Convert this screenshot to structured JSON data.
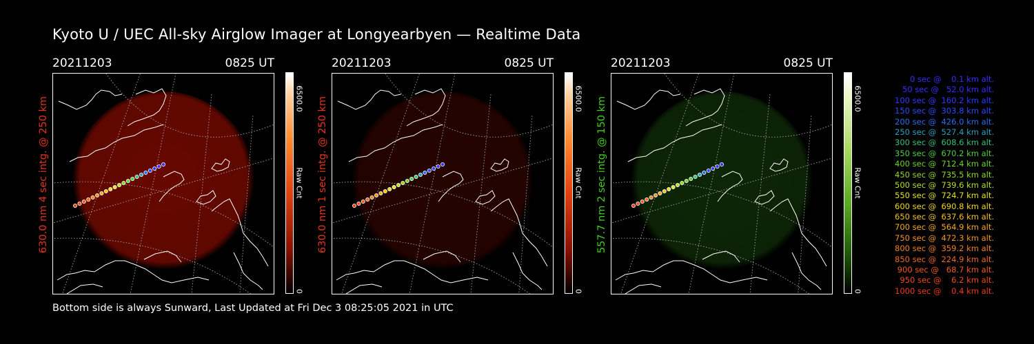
{
  "title": "Kyoto U / UEC All-sky Airglow Imager at Longyearbyen — Realtime Data",
  "footer": "Bottom side is always Sunward, Last Updated at Fri Dec  3 08:25:05 2021 in UTC",
  "panels": [
    {
      "date": "20211203",
      "time": "0825 UT",
      "side_label": "630.0 nm 4 sec intg. @ 250 km",
      "side_color": "#e8331c",
      "cbar_max": "6500.0",
      "cbar_unit": "Raw Cnt",
      "cbar_min": "0",
      "tint": "#7a0a00",
      "glow": 0.85
    },
    {
      "date": "20211203",
      "time": "0825 UT",
      "side_label": "630.0 nm 1 sec intg. @ 250 km",
      "side_color": "#e8331c",
      "cbar_max": "6500.0",
      "cbar_unit": "Raw Cnt",
      "cbar_min": "0",
      "tint": "#2a0400",
      "glow": 0.9
    },
    {
      "date": "20211203",
      "time": "0825 UT",
      "side_label": "557.7 nm 2 sec intg. @ 150 km",
      "side_color": "#3fd11b",
      "cbar_max": "6500.0",
      "cbar_unit": "Raw Cnt",
      "cbar_min": "0",
      "tint": "#0f2a08",
      "glow": 0.9
    }
  ],
  "legend": [
    {
      "text": "   0 sec @    0.1 km alt.",
      "color": "#3a2cff"
    },
    {
      "text": "  50 sec @   52.0 km alt.",
      "color": "#3a2cff"
    },
    {
      "text": " 100 sec @  160.2 km alt.",
      "color": "#2a3cff"
    },
    {
      "text": " 150 sec @  303.8 km alt.",
      "color": "#2a4cff"
    },
    {
      "text": " 200 sec @  426.0 km alt.",
      "color": "#2a6cf0"
    },
    {
      "text": " 250 sec @  527.4 km alt.",
      "color": "#2aa0c0"
    },
    {
      "text": " 300 sec @  608.6 km alt.",
      "color": "#33c37a"
    },
    {
      "text": " 350 sec @  670.2 km alt.",
      "color": "#4ed042"
    },
    {
      "text": " 400 sec @  712.4 km alt.",
      "color": "#6ad628"
    },
    {
      "text": " 450 sec @  735.5 km alt.",
      "color": "#8fdb22"
    },
    {
      "text": " 500 sec @  739.6 km alt.",
      "color": "#b8e01e"
    },
    {
      "text": " 550 sec @  724.7 km alt.",
      "color": "#e0e31a"
    },
    {
      "text": " 600 sec @  690.8 km alt.",
      "color": "#f2d81a"
    },
    {
      "text": " 650 sec @  637.6 km alt.",
      "color": "#f2c21a"
    },
    {
      "text": " 700 sec @  564.9 km alt.",
      "color": "#f2aa1a"
    },
    {
      "text": " 750 sec @  472.3 km alt.",
      "color": "#f2951a"
    },
    {
      "text": " 800 sec @  359.2 km alt.",
      "color": "#f2801a"
    },
    {
      "text": " 850 sec @  224.9 km alt.",
      "color": "#f26a1a"
    },
    {
      "text": " 900 sec @   68.7 km alt.",
      "color": "#f25a1a"
    },
    {
      "text": " 950 sec @    6.2 km alt.",
      "color": "#f24a1a"
    },
    {
      "text": "1000 sec @    0.4 km alt.",
      "color": "#f23a1a"
    }
  ]
}
